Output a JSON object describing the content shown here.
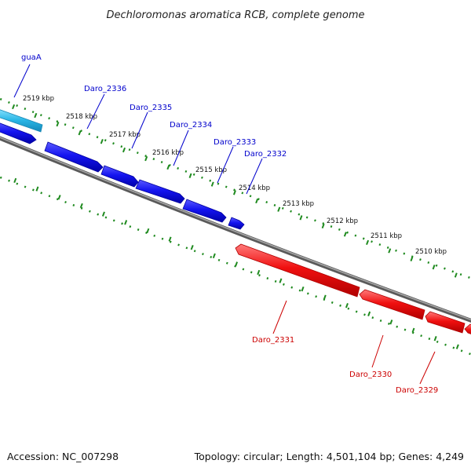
{
  "title": "Dechloromonas aromatica RCB, complete genome",
  "footer": {
    "accession": "Accession: NC_007298",
    "summary": "Topology: circular; Length: 4,501,104 bp; Genes: 4,249"
  },
  "colors": {
    "forward": "#1010e0",
    "forward_highlight": "#29b6e6",
    "reverse": "#ee1111",
    "backbone": "#808080",
    "ruler": "#1f8a1f",
    "forward_label": "#0000cc",
    "reverse_label": "#cc0000"
  },
  "kbp_labels": [
    "2519 kbp",
    "2518 kbp",
    "2517 kbp",
    "2516 kbp",
    "2515 kbp",
    "2514 kbp",
    "2513 kbp",
    "2512 kbp",
    "2511 kbp",
    "2510 kbp"
  ],
  "genes_forward": [
    "guaA",
    "Daro_2336",
    "Daro_2335",
    "Daro_2334",
    "Daro_2333",
    "Daro_2332"
  ],
  "genes_reverse": [
    "Daro_2331",
    "Daro_2330",
    "Daro_2329"
  ]
}
